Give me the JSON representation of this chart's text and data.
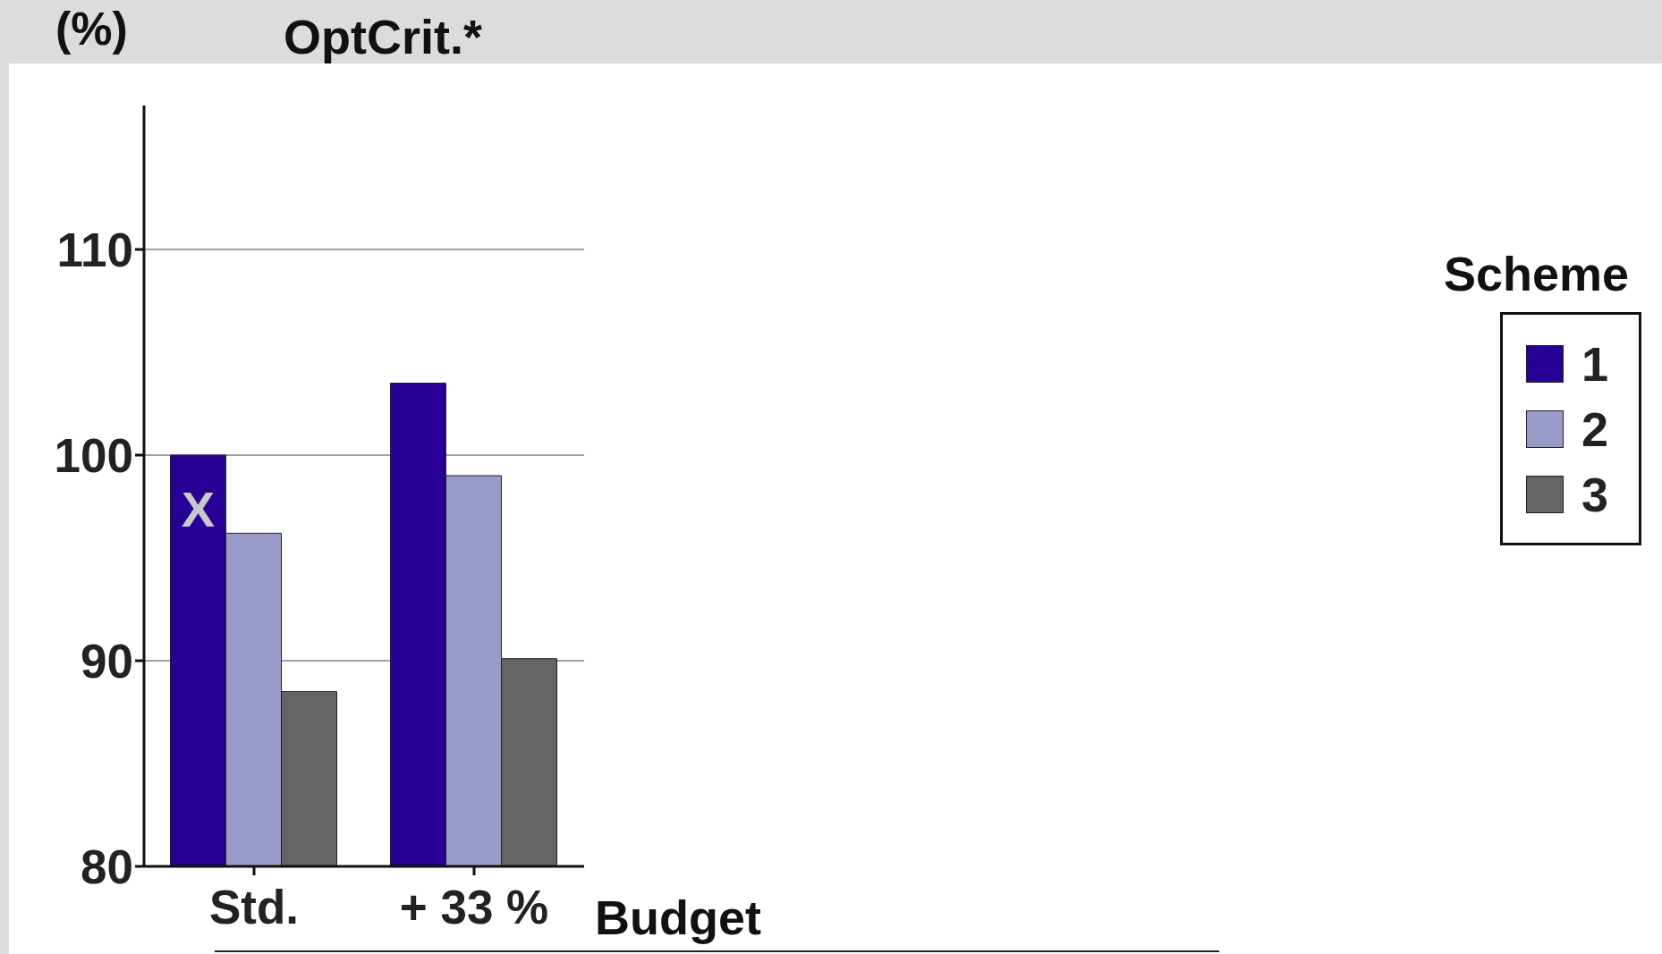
{
  "chart_data": {
    "type": "bar",
    "title": "OptCrit.*",
    "ylabel": "(%)",
    "xlabel": "Budget",
    "legend_title": "Scheme",
    "categories": [
      "Std.",
      "+ 33 %"
    ],
    "series": [
      {
        "name": "1",
        "color": "#280096",
        "values": [
          100,
          103.5
        ]
      },
      {
        "name": "2",
        "color": "#9b9bcb",
        "values": [
          96.2,
          99.0
        ]
      },
      {
        "name": "3",
        "color": "#646464",
        "values": [
          88.5,
          90.1
        ]
      }
    ],
    "ylim": [
      80,
      117
    ],
    "yticks": [
      80,
      90,
      100,
      110
    ],
    "grid": "y",
    "legend": "right",
    "annotations": [
      "X"
    ]
  }
}
